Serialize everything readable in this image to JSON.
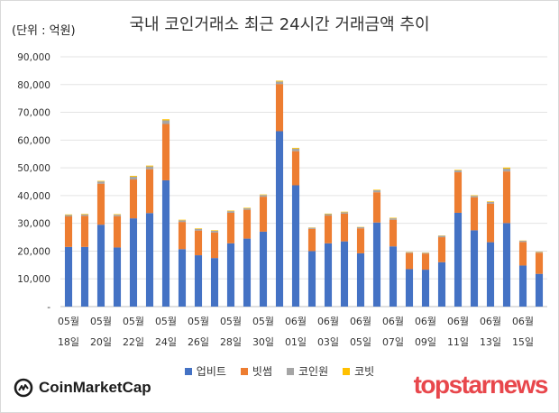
{
  "header": {
    "unit_label": "(단위 : 억원)",
    "title": "국내 코인거래소 최근 24시간 거래금액 추이"
  },
  "chart_data": {
    "type": "bar",
    "stacked": true,
    "ylim": [
      0,
      90000
    ],
    "yticks": [
      "-",
      "10,000",
      "20,000",
      "30,000",
      "40,000",
      "50,000",
      "60,000",
      "70,000",
      "80,000",
      "90,000"
    ],
    "grid": true,
    "legend_position": "bottom",
    "categories": [
      "05월 18일",
      "05월 19일",
      "05월 20일",
      "05월 21일",
      "05월 22일",
      "05월 23일",
      "05월 24일",
      "05월 25일",
      "05월 26일",
      "05월 27일",
      "05월 28일",
      "05월 29일",
      "05월 30일",
      "05월 31일",
      "06월 01일",
      "06월 02일",
      "06월 03일",
      "06월 04일",
      "06월 05일",
      "06월 06일",
      "06월 07일",
      "06월 08일",
      "06월 09일",
      "06월 10일",
      "06월 11일",
      "06월 12일",
      "06월 13일",
      "06월 14일",
      "06월 15일",
      "06월 16일"
    ],
    "x_labels": [
      {
        "month": "05월",
        "day": "18일"
      },
      {
        "month": "05월",
        "day": "20일"
      },
      {
        "month": "05월",
        "day": "22일"
      },
      {
        "month": "05월",
        "day": "24일"
      },
      {
        "month": "05월",
        "day": "26일"
      },
      {
        "month": "05월",
        "day": "28일"
      },
      {
        "month": "05월",
        "day": "30일"
      },
      {
        "month": "06월",
        "day": "01일"
      },
      {
        "month": "06월",
        "day": "03일"
      },
      {
        "month": "06월",
        "day": "05일"
      },
      {
        "month": "06월",
        "day": "07일"
      },
      {
        "month": "06월",
        "day": "09일"
      },
      {
        "month": "06월",
        "day": "11일"
      },
      {
        "month": "06월",
        "day": "13일"
      },
      {
        "month": "06월",
        "day": "15일"
      }
    ],
    "series": [
      {
        "name": "업비트",
        "color": "#4472c4",
        "values": [
          21500,
          21500,
          29500,
          21300,
          31800,
          33700,
          45500,
          20700,
          18500,
          17500,
          22800,
          24500,
          27000,
          63200,
          43700,
          20000,
          22800,
          23500,
          19200,
          30300,
          21700,
          13500,
          13300,
          16000,
          33800,
          27500,
          23200,
          30100,
          14800,
          11800
        ]
      },
      {
        "name": "빗썸",
        "color": "#ed7d31",
        "values": [
          11000,
          11200,
          14800,
          11300,
          14000,
          15800,
          20300,
          9800,
          8900,
          9200,
          11000,
          10400,
          12600,
          17000,
          12300,
          8000,
          10000,
          10000,
          9000,
          10900,
          9600,
          5800,
          5800,
          9000,
          14600,
          11900,
          13900,
          18600,
          8500,
          7600
        ]
      },
      {
        "name": "코인원",
        "color": "#a5a5a5",
        "values": [
          500,
          500,
          800,
          500,
          1000,
          1000,
          1300,
          600,
          600,
          600,
          600,
          500,
          600,
          900,
          900,
          400,
          500,
          500,
          400,
          700,
          500,
          300,
          300,
          500,
          700,
          500,
          600,
          1000,
          400,
          300
        ]
      },
      {
        "name": "코빗",
        "color": "#ffc000",
        "values": [
          200,
          200,
          200,
          200,
          300,
          300,
          400,
          200,
          200,
          200,
          200,
          200,
          200,
          300,
          300,
          100,
          200,
          200,
          100,
          200,
          200,
          100,
          100,
          100,
          200,
          200,
          200,
          400,
          100,
          100
        ]
      }
    ]
  },
  "footer": {
    "source_name": "CoinMarketCap",
    "brand_text": "topstarnews"
  }
}
